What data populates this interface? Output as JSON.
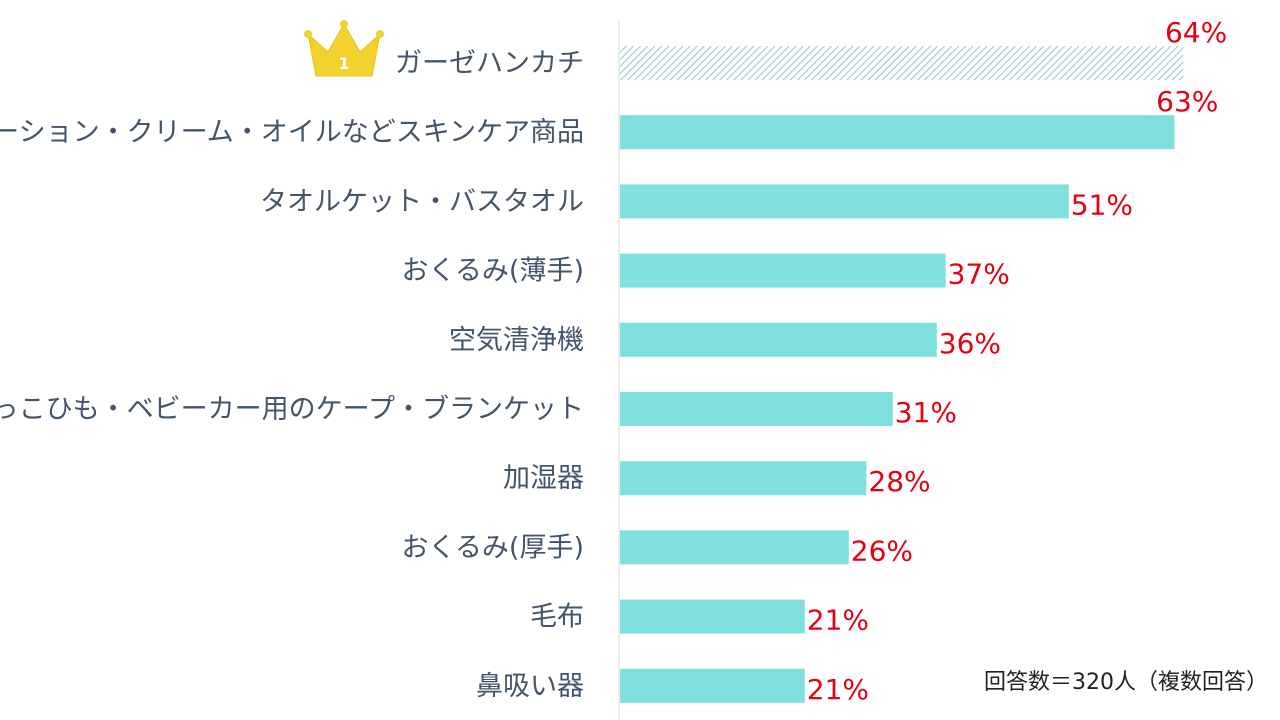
{
  "chart_data": {
    "type": "bar",
    "orientation": "horizontal",
    "categories": [
      "ガーゼハンカチ",
      "ローション・クリーム・オイルなどスキンケア商品",
      "タオルケット・バスタオル",
      "おくるみ(薄手)",
      "空気清浄機",
      "だっこひも・ベビーカー用のケープ・ブランケット",
      "加湿器",
      "おくるみ(厚手)",
      "毛布",
      "鼻吸い器"
    ],
    "values": [
      64,
      63,
      51,
      37,
      36,
      31,
      28,
      26,
      21,
      21
    ],
    "value_labels": [
      "64%",
      "63%",
      "51%",
      "37%",
      "36%",
      "31%",
      "28%",
      "26%",
      "21%",
      "21%"
    ],
    "unit": "%",
    "xlim": [
      0,
      100
    ],
    "grid": false,
    "legend": "none",
    "highlight_index": 0,
    "rank_badge": "1",
    "note": "回答数＝320人（複数回答）",
    "colors": {
      "bar": "#7fe0de",
      "highlight_bar_fill": "#ffffff",
      "highlight_bar_hatch": "#8fc8c6",
      "value_label": "#e50012",
      "category_label": "#44546a",
      "crown": "#f2d22e",
      "axis": "#d9d9d9"
    }
  }
}
